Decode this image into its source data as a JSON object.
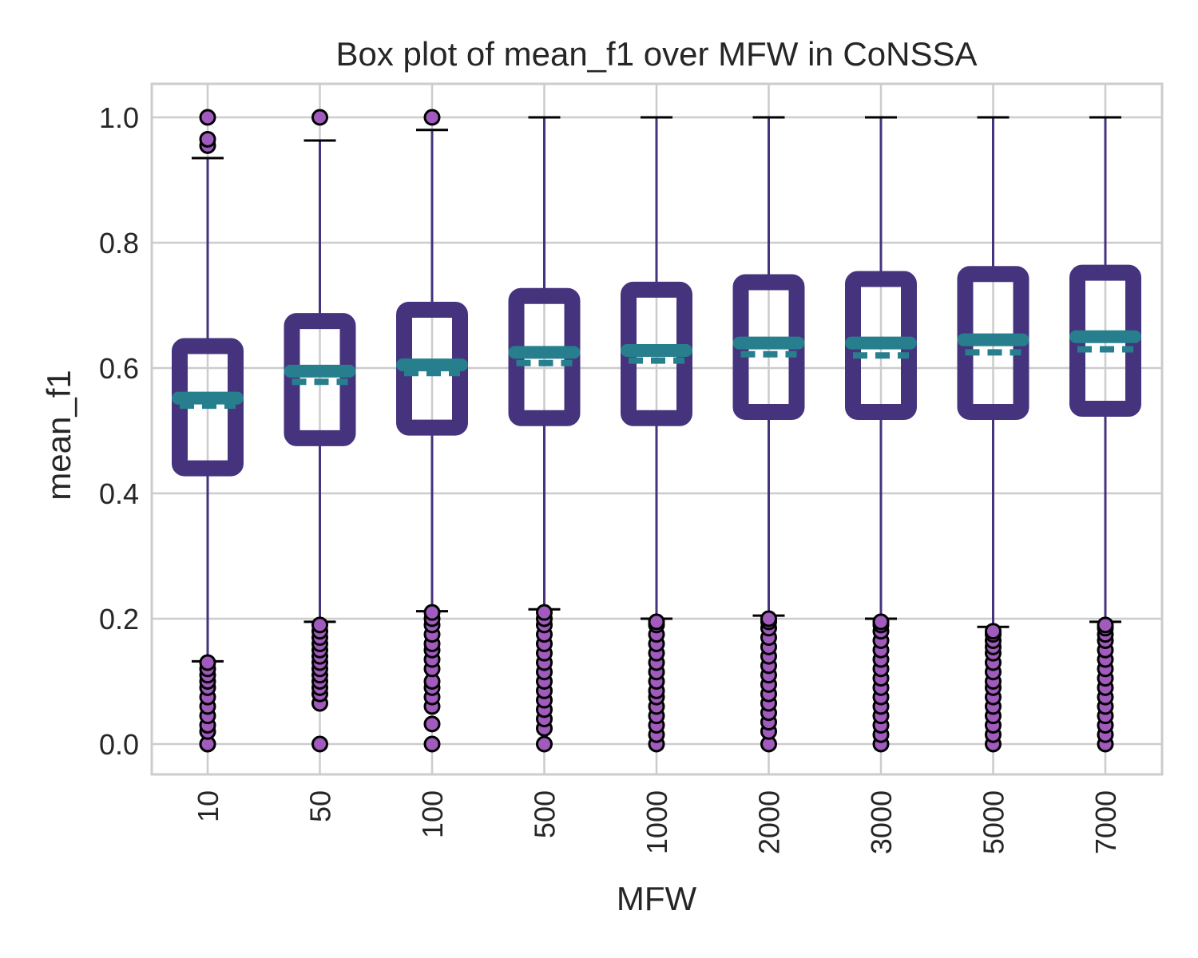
{
  "chart_data": {
    "type": "box",
    "title": "Box plot of mean_f1 over MFW in CoNSSA",
    "xlabel": "MFW",
    "ylabel": "mean_f1",
    "ylim": [
      -0.05,
      1.05
    ],
    "yticks": [
      "0.0",
      "0.2",
      "0.4",
      "0.6",
      "0.8",
      "1.0"
    ],
    "grid": true,
    "colors": {
      "box": "#46337e",
      "whisker": "#46337e",
      "cap": "#000000",
      "median": "#277f8e",
      "mean": "#277f8e",
      "flier_fill": "#a05bbd",
      "flier_edge": "#000000",
      "grid": "#cccccc",
      "frame": "#cccccc"
    },
    "categories": [
      "10",
      "50",
      "100",
      "500",
      "1000",
      "2000",
      "3000",
      "5000",
      "7000"
    ],
    "boxes": [
      {
        "category": "10",
        "whislo": 0.132,
        "q1": 0.44,
        "median": 0.552,
        "mean": 0.54,
        "q3": 0.635,
        "whishi": 0.935,
        "fliers": [
          0.0,
          0.0,
          0.02,
          0.03,
          0.045,
          0.06,
          0.075,
          0.09,
          0.1,
          0.11,
          0.12,
          0.13,
          0.955,
          0.965,
          1.0
        ]
      },
      {
        "category": "50",
        "whislo": 0.195,
        "q1": 0.488,
        "median": 0.595,
        "mean": 0.578,
        "q3": 0.675,
        "whishi": 0.963,
        "fliers": [
          0.0,
          0.065,
          0.08,
          0.09,
          0.1,
          0.11,
          0.12,
          0.13,
          0.14,
          0.15,
          0.16,
          0.17,
          0.18,
          0.19,
          1.0
        ]
      },
      {
        "category": "100",
        "whislo": 0.212,
        "q1": 0.505,
        "median": 0.605,
        "mean": 0.592,
        "q3": 0.693,
        "whishi": 0.98,
        "fliers": [
          0.0,
          0.032,
          0.06,
          0.075,
          0.09,
          0.1,
          0.12,
          0.135,
          0.15,
          0.16,
          0.175,
          0.19,
          0.2,
          0.21,
          1.0
        ]
      },
      {
        "category": "500",
        "whislo": 0.215,
        "q1": 0.52,
        "median": 0.625,
        "mean": 0.608,
        "q3": 0.715,
        "whishi": 1.0,
        "fliers": [
          0.0,
          0.025,
          0.04,
          0.055,
          0.07,
          0.085,
          0.1,
          0.115,
          0.13,
          0.145,
          0.16,
          0.175,
          0.19,
          0.2,
          0.21
        ]
      },
      {
        "category": "1000",
        "whislo": 0.2,
        "q1": 0.52,
        "median": 0.628,
        "mean": 0.612,
        "q3": 0.725,
        "whishi": 1.0,
        "fliers": [
          0.0,
          0.015,
          0.03,
          0.045,
          0.06,
          0.075,
          0.085,
          0.1,
          0.115,
          0.13,
          0.145,
          0.16,
          0.175,
          0.19,
          0.195
        ]
      },
      {
        "category": "2000",
        "whislo": 0.205,
        "q1": 0.53,
        "median": 0.64,
        "mean": 0.622,
        "q3": 0.737,
        "whishi": 1.0,
        "fliers": [
          0.0,
          0.02,
          0.035,
          0.05,
          0.065,
          0.08,
          0.095,
          0.11,
          0.125,
          0.14,
          0.155,
          0.17,
          0.185,
          0.195,
          0.2
        ]
      },
      {
        "category": "3000",
        "whislo": 0.2,
        "q1": 0.53,
        "median": 0.64,
        "mean": 0.62,
        "q3": 0.742,
        "whishi": 1.0,
        "fliers": [
          0.0,
          0.015,
          0.03,
          0.045,
          0.06,
          0.075,
          0.09,
          0.105,
          0.12,
          0.135,
          0.15,
          0.165,
          0.18,
          0.19,
          0.195
        ]
      },
      {
        "category": "5000",
        "whislo": 0.187,
        "q1": 0.53,
        "median": 0.645,
        "mean": 0.625,
        "q3": 0.75,
        "whishi": 1.0,
        "fliers": [
          0.0,
          0.015,
          0.03,
          0.045,
          0.06,
          0.075,
          0.09,
          0.1,
          0.115,
          0.13,
          0.145,
          0.155,
          0.165,
          0.175,
          0.18
        ]
      },
      {
        "category": "7000",
        "whislo": 0.195,
        "q1": 0.535,
        "median": 0.65,
        "mean": 0.63,
        "q3": 0.752,
        "whishi": 1.0,
        "fliers": [
          0.0,
          0.015,
          0.03,
          0.045,
          0.06,
          0.075,
          0.09,
          0.105,
          0.12,
          0.135,
          0.15,
          0.165,
          0.175,
          0.185,
          0.19
        ]
      }
    ]
  }
}
